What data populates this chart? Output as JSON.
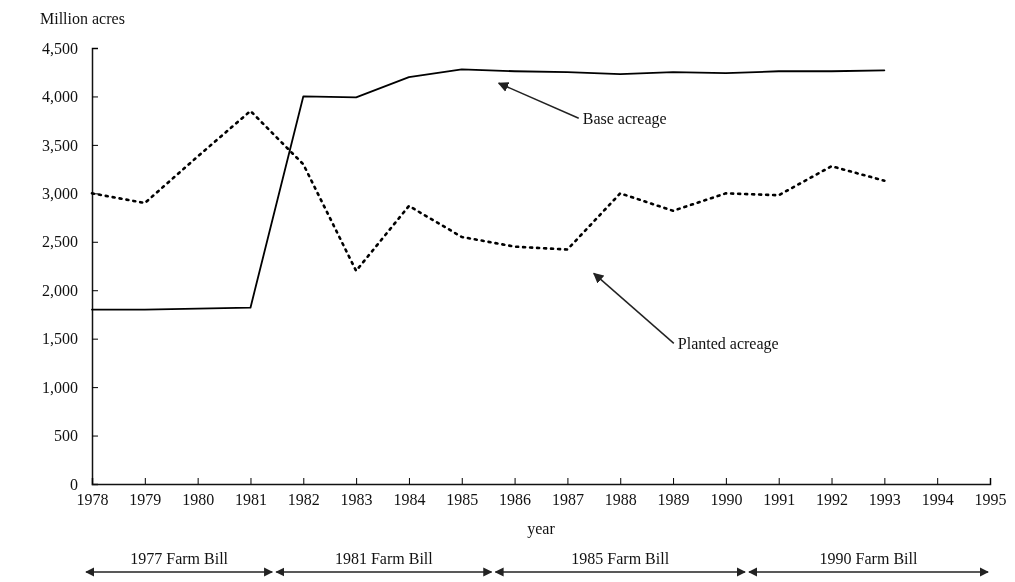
{
  "chart_data": {
    "type": "line",
    "ylabel": "Million acres",
    "xlabel": "year",
    "x": [
      1978,
      1979,
      1980,
      1981,
      1982,
      1983,
      1984,
      1985,
      1986,
      1987,
      1988,
      1989,
      1990,
      1991,
      1992,
      1993
    ],
    "series": [
      {
        "name": "Base acreage",
        "color": "#000000",
        "line_style": "solid",
        "values": [
          1800,
          1800,
          1810,
          1820,
          4000,
          3990,
          4200,
          4280,
          4260,
          4250,
          4230,
          4250,
          4240,
          4260,
          4260,
          4270
        ]
      },
      {
        "name": "Planted acreage",
        "color": "#000000",
        "line_style": "dotted",
        "values": [
          3000,
          2900,
          3380,
          3850,
          3300,
          2200,
          2870,
          2550,
          2450,
          2420,
          3000,
          2820,
          3000,
          2980,
          3280,
          3130
        ]
      }
    ],
    "xlim": [
      1978,
      1995
    ],
    "xticks": [
      1978,
      1979,
      1980,
      1981,
      1982,
      1983,
      1984,
      1985,
      1986,
      1987,
      1988,
      1989,
      1990,
      1991,
      1992,
      1993,
      1994,
      1995
    ],
    "ylim": [
      0,
      4500
    ],
    "yticks": [
      0,
      500,
      {
        "value": 1000,
        "label": "1,000"
      },
      {
        "value": 1500,
        "label": "1,500"
      },
      {
        "value": 2000,
        "label": "2,000"
      },
      {
        "value": 2500,
        "label": "2,500"
      },
      {
        "value": 3000,
        "label": "3,000"
      },
      {
        "value": 3500,
        "label": "3,500"
      },
      {
        "value": 4000,
        "label": "4,000"
      },
      {
        "value": 4500,
        "label": "4,500"
      }
    ],
    "annotations": [
      "1977 Farm Bill",
      "1981 Farm Bill",
      "1985 Farm Bill",
      "1990 Farm Bill"
    ]
  }
}
